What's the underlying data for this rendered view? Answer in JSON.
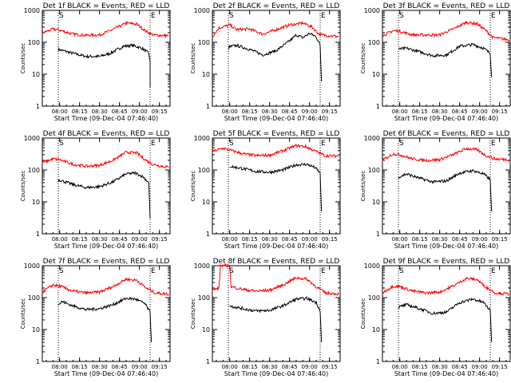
{
  "common": {
    "ylabel": "Counts/sec",
    "xlabel": "Start Time (09-Dec-04 07:46:40)",
    "x_ticks": [
      "08:00",
      "08:15",
      "08:30",
      "08:45",
      "09:00",
      "09:15"
    ],
    "y_ticks": [
      "1",
      "10",
      "100",
      "1000"
    ],
    "marker_s": "S",
    "marker_e": "E",
    "colors": {
      "events": "#000000",
      "lld": "#ff0000",
      "axes": "#000000",
      "background": "#ffffff"
    }
  },
  "chart_data": [
    {
      "type": "line",
      "title": "Det 1f  BLACK = Events, RED = LLD",
      "ylabel": "Counts/sec",
      "xlabel": "Start Time (09-Dec-04 07:46:40)",
      "y_scale": "log",
      "ylim": [
        1,
        1000
      ],
      "marker_times": [
        "07:59",
        "09:08"
      ],
      "series": [
        {
          "name": "BLACK = Events",
          "points": [
            [
              "07:59",
              60
            ],
            [
              "08:10",
              45
            ],
            [
              "08:20",
              36
            ],
            [
              "08:30",
              36
            ],
            [
              "08:38",
              45
            ],
            [
              "08:48",
              75
            ],
            [
              "08:55",
              80
            ],
            [
              "09:02",
              65
            ],
            [
              "09:07",
              45
            ],
            [
              "09:08",
              25
            ],
            [
              "09:08",
              4
            ]
          ]
        },
        {
          "name": "RED = LLD",
          "points": [
            [
              "07:47",
              195
            ],
            [
              "07:55",
              260
            ],
            [
              "08:00",
              240
            ],
            [
              "08:10",
              180
            ],
            [
              "08:20",
              165
            ],
            [
              "08:30",
              170
            ],
            [
              "08:40",
              250
            ],
            [
              "08:50",
              400
            ],
            [
              "08:58",
              370
            ],
            [
              "09:05",
              220
            ],
            [
              "09:10",
              170
            ],
            [
              "09:22",
              160
            ]
          ]
        }
      ]
    },
    {
      "type": "line",
      "title": "Det 2f  BLACK = Events, RED = LLD",
      "ylabel": "Counts/sec",
      "xlabel": "Start Time (09-Dec-04 07:46:40)",
      "y_scale": "log",
      "ylim": [
        1,
        1000
      ],
      "marker_times": [
        "07:59",
        "09:08"
      ],
      "series": [
        {
          "name": "BLACK = Events",
          "points": [
            [
              "07:59",
              70
            ],
            [
              "08:05",
              80
            ],
            [
              "08:15",
              60
            ],
            [
              "08:25",
              40
            ],
            [
              "08:35",
              55
            ],
            [
              "08:45",
              110
            ],
            [
              "08:50",
              170
            ],
            [
              "08:55",
              140
            ],
            [
              "09:00",
              190
            ],
            [
              "09:05",
              150
            ],
            [
              "09:08",
              80
            ],
            [
              "09:09",
              6
            ]
          ]
        },
        {
          "name": "RED = LLD",
          "points": [
            [
              "07:47",
              150
            ],
            [
              "07:52",
              280
            ],
            [
              "08:00",
              350
            ],
            [
              "08:05",
              250
            ],
            [
              "08:15",
              260
            ],
            [
              "08:25",
              180
            ],
            [
              "08:35",
              250
            ],
            [
              "08:45",
              350
            ],
            [
              "08:55",
              400
            ],
            [
              "09:02",
              300
            ],
            [
              "09:07",
              180
            ],
            [
              "09:10",
              170
            ],
            [
              "09:22",
              150
            ]
          ]
        }
      ]
    },
    {
      "type": "line",
      "title": "Det 3f  BLACK = Events, RED = LLD",
      "ylabel": "Counts/sec",
      "xlabel": "Start Time (09-Dec-04 07:46:40)",
      "y_scale": "log",
      "ylim": [
        1,
        1000
      ],
      "marker_times": [
        "07:59",
        "09:08"
      ],
      "series": [
        {
          "name": "BLACK = Events",
          "points": [
            [
              "07:59",
              60
            ],
            [
              "08:05",
              65
            ],
            [
              "08:15",
              50
            ],
            [
              "08:25",
              38
            ],
            [
              "08:35",
              40
            ],
            [
              "08:45",
              75
            ],
            [
              "08:55",
              85
            ],
            [
              "09:03",
              65
            ],
            [
              "09:08",
              45
            ],
            [
              "09:09",
              8
            ]
          ]
        },
        {
          "name": "RED = LLD",
          "points": [
            [
              "07:47",
              160
            ],
            [
              "07:55",
              230
            ],
            [
              "08:00",
              220
            ],
            [
              "08:10",
              170
            ],
            [
              "08:20",
              170
            ],
            [
              "08:30",
              170
            ],
            [
              "08:40",
              260
            ],
            [
              "08:50",
              420
            ],
            [
              "08:58",
              380
            ],
            [
              "09:05",
              230
            ],
            [
              "09:10",
              140
            ],
            [
              "09:22",
              120
            ]
          ]
        }
      ]
    },
    {
      "type": "line",
      "title": "Det 4f  BLACK = Events, RED = LLD",
      "ylabel": "Counts/sec",
      "xlabel": "Start Time (09-Dec-04 07:46:40)",
      "y_scale": "log",
      "ylim": [
        1,
        1000
      ],
      "marker_times": [
        "07:59",
        "09:08"
      ],
      "series": [
        {
          "name": "BLACK = Events",
          "points": [
            [
              "07:59",
              50
            ],
            [
              "08:10",
              35
            ],
            [
              "08:20",
              28
            ],
            [
              "08:30",
              30
            ],
            [
              "08:40",
              42
            ],
            [
              "08:50",
              75
            ],
            [
              "08:57",
              80
            ],
            [
              "09:03",
              60
            ],
            [
              "09:07",
              40
            ],
            [
              "09:08",
              3
            ]
          ]
        },
        {
          "name": "RED = LLD",
          "points": [
            [
              "07:47",
              170
            ],
            [
              "07:55",
              220
            ],
            [
              "08:00",
              210
            ],
            [
              "08:10",
              150
            ],
            [
              "08:20",
              130
            ],
            [
              "08:30",
              140
            ],
            [
              "08:40",
              200
            ],
            [
              "08:50",
              360
            ],
            [
              "08:58",
              340
            ],
            [
              "09:05",
              200
            ],
            [
              "09:10",
              150
            ],
            [
              "09:22",
              120
            ]
          ]
        }
      ]
    },
    {
      "type": "line",
      "title": "Det 5f  BLACK = Events, RED = LLD",
      "ylabel": "Counts/sec",
      "xlabel": "Start Time (09-Dec-04 07:46:40)",
      "y_scale": "log",
      "ylim": [
        1,
        1000
      ],
      "marker_times": [
        "07:59",
        "09:08"
      ],
      "series": [
        {
          "name": "BLACK = Events",
          "points": [
            [
              "08:00",
              130
            ],
            [
              "08:10",
              110
            ],
            [
              "08:20",
              90
            ],
            [
              "08:30",
              85
            ],
            [
              "08:40",
              100
            ],
            [
              "08:50",
              145
            ],
            [
              "08:58",
              150
            ],
            [
              "09:04",
              120
            ],
            [
              "09:08",
              80
            ],
            [
              "09:09",
              5
            ]
          ]
        },
        {
          "name": "RED = LLD",
          "points": [
            [
              "07:47",
              380
            ],
            [
              "07:55",
              480
            ],
            [
              "08:00",
              420
            ],
            [
              "08:10",
              320
            ],
            [
              "08:20",
              280
            ],
            [
              "08:30",
              290
            ],
            [
              "08:40",
              400
            ],
            [
              "08:50",
              580
            ],
            [
              "08:57",
              540
            ],
            [
              "09:05",
              380
            ],
            [
              "09:12",
              280
            ],
            [
              "09:22",
              270
            ]
          ]
        }
      ]
    },
    {
      "type": "line",
      "title": "Det 6f  BLACK = Events, RED = LLD",
      "ylabel": "Counts/sec",
      "xlabel": "Start Time (09-Dec-04 07:46:40)",
      "y_scale": "log",
      "ylim": [
        1,
        1000
      ],
      "marker_times": [
        "07:59",
        "09:08"
      ],
      "series": [
        {
          "name": "BLACK = Events",
          "points": [
            [
              "07:59",
              60
            ],
            [
              "08:05",
              75
            ],
            [
              "08:15",
              55
            ],
            [
              "08:25",
              42
            ],
            [
              "08:35",
              45
            ],
            [
              "08:45",
              80
            ],
            [
              "08:55",
              95
            ],
            [
              "09:03",
              75
            ],
            [
              "09:08",
              50
            ],
            [
              "09:09",
              5
            ]
          ]
        },
        {
          "name": "RED = LLD",
          "points": [
            [
              "07:47",
              200
            ],
            [
              "07:55",
              320
            ],
            [
              "08:00",
              300
            ],
            [
              "08:10",
              220
            ],
            [
              "08:20",
              200
            ],
            [
              "08:30",
              210
            ],
            [
              "08:40",
              300
            ],
            [
              "08:50",
              470
            ],
            [
              "08:58",
              430
            ],
            [
              "09:05",
              280
            ],
            [
              "09:12",
              220
            ],
            [
              "09:22",
              210
            ]
          ]
        }
      ]
    },
    {
      "type": "line",
      "title": "Det 7f  BLACK = Events, RED = LLD",
      "ylabel": "Counts/sec",
      "xlabel": "Start Time (09-Dec-04 07:46:40)",
      "y_scale": "log",
      "ylim": [
        1,
        1000
      ],
      "marker_times": [
        "07:59",
        "09:08"
      ],
      "series": [
        {
          "name": "BLACK = Events",
          "points": [
            [
              "07:59",
              60
            ],
            [
              "08:02",
              75
            ],
            [
              "08:10",
              55
            ],
            [
              "08:20",
              42
            ],
            [
              "08:30",
              45
            ],
            [
              "08:40",
              60
            ],
            [
              "08:50",
              95
            ],
            [
              "08:57",
              90
            ],
            [
              "09:04",
              65
            ],
            [
              "09:08",
              35
            ],
            [
              "09:09",
              4
            ]
          ]
        },
        {
          "name": "RED = LLD",
          "points": [
            [
              "07:47",
              150
            ],
            [
              "07:55",
              250
            ],
            [
              "08:00",
              230
            ],
            [
              "08:10",
              160
            ],
            [
              "08:20",
              140
            ],
            [
              "08:30",
              150
            ],
            [
              "08:40",
              220
            ],
            [
              "08:50",
              380
            ],
            [
              "08:58",
              350
            ],
            [
              "09:05",
              200
            ],
            [
              "09:12",
              140
            ],
            [
              "09:22",
              130
            ]
          ]
        }
      ]
    },
    {
      "type": "line",
      "title": "Det 8f  BLACK = Events, RED = LLD",
      "ylabel": "Counts/sec",
      "xlabel": "Start Time (09-Dec-04 07:46:40)",
      "y_scale": "log",
      "ylim": [
        1,
        1000
      ],
      "marker_times": [
        "07:59",
        "09:08"
      ],
      "series": [
        {
          "name": "BLACK = Events",
          "points": [
            [
              "08:00",
              55
            ],
            [
              "08:10",
              45
            ],
            [
              "08:20",
              38
            ],
            [
              "08:30",
              40
            ],
            [
              "08:40",
              55
            ],
            [
              "08:50",
              90
            ],
            [
              "08:58",
              95
            ],
            [
              "09:05",
              70
            ],
            [
              "09:08",
              40
            ],
            [
              "09:09",
              4
            ]
          ]
        },
        {
          "name": "RED = LLD",
          "points": [
            [
              "07:47",
              170
            ],
            [
              "07:52",
              200
            ],
            [
              "07:53",
              1000
            ],
            [
              "08:00",
              1000
            ],
            [
              "08:01",
              220
            ],
            [
              "08:10",
              180
            ],
            [
              "08:20",
              160
            ],
            [
              "08:30",
              170
            ],
            [
              "08:40",
              250
            ],
            [
              "08:50",
              420
            ],
            [
              "08:58",
              380
            ],
            [
              "09:05",
              220
            ],
            [
              "09:12",
              140
            ],
            [
              "09:22",
              130
            ]
          ]
        }
      ]
    },
    {
      "type": "line",
      "title": "Det 9f  BLACK = Events, RED = LLD",
      "ylabel": "Counts/sec",
      "xlabel": "Start Time (09-Dec-04 07:46:40)",
      "y_scale": "log",
      "ylim": [
        1,
        1000
      ],
      "marker_times": [
        "07:59",
        "09:08"
      ],
      "series": [
        {
          "name": "BLACK = Events",
          "points": [
            [
              "07:59",
              50
            ],
            [
              "08:05",
              60
            ],
            [
              "08:15",
              45
            ],
            [
              "08:25",
              32
            ],
            [
              "08:35",
              35
            ],
            [
              "08:45",
              70
            ],
            [
              "08:55",
              90
            ],
            [
              "09:03",
              70
            ],
            [
              "09:08",
              40
            ],
            [
              "09:09",
              4
            ]
          ]
        },
        {
          "name": "RED = LLD",
          "points": [
            [
              "07:47",
              140
            ],
            [
              "07:55",
              230
            ],
            [
              "08:00",
              220
            ],
            [
              "08:10",
              160
            ],
            [
              "08:20",
              140
            ],
            [
              "08:30",
              150
            ],
            [
              "08:40",
              230
            ],
            [
              "08:50",
              400
            ],
            [
              "08:58",
              370
            ],
            [
              "09:05",
              210
            ],
            [
              "09:12",
              140
            ],
            [
              "09:22",
              130
            ]
          ]
        }
      ]
    }
  ]
}
